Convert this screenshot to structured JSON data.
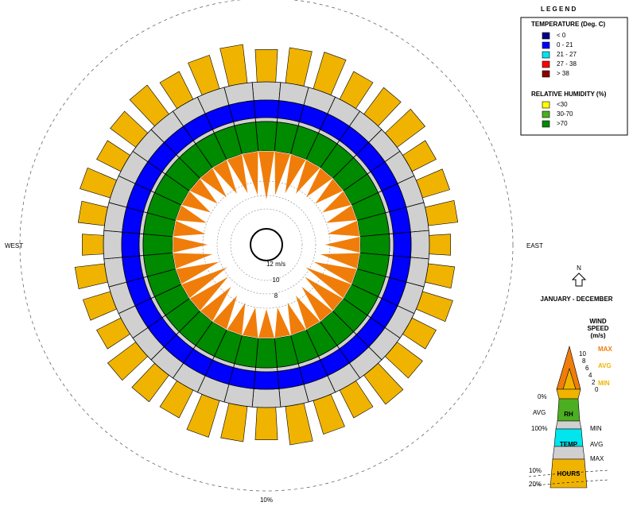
{
  "legend": {
    "title": "L E G E N D",
    "temperature": {
      "title": "TEMPERATURE (Deg. C)",
      "items": [
        {
          "label": "< 0",
          "color": "#00008b"
        },
        {
          "label": "0  -  21",
          "color": "#0000ff"
        },
        {
          "label": "21  -  27",
          "color": "#00e5ee"
        },
        {
          "label": "27  -  38",
          "color": "#ff0000"
        },
        {
          "label": "> 38",
          "color": "#8b0000"
        }
      ]
    },
    "humidity": {
      "title": "RELATIVE HUMIDITY (%)",
      "items": [
        {
          "label": "<30",
          "color": "#ffff00"
        },
        {
          "label": "30-70",
          "color": "#4caf22"
        },
        {
          "label": ">70",
          "color": "#008a00"
        }
      ]
    }
  },
  "compass": {
    "west": "WEST",
    "east": "EAST",
    "north": "N"
  },
  "period": "JANUARY - DECEMBER",
  "center_labels": [
    "12 m/s",
    "10",
    "8"
  ],
  "outer_label": "10%",
  "key": {
    "title": [
      "WIND",
      "SPEED",
      "(m/s)"
    ],
    "speed_ticks": [
      "10",
      "8",
      "6",
      "4",
      "2",
      "0"
    ],
    "max": "MAX",
    "avg": "AVG",
    "min": "MIN",
    "zero_pct": "0%",
    "rh": "RH",
    "rh_avg": "AVG",
    "rh_min": "MIN",
    "hundred_pct": "100%",
    "temp": "TEMP",
    "temp_avg": "AVG",
    "temp_max": "MAX",
    "hours": "HOURS",
    "ten_pct": "10%",
    "twenty_pct": "20%"
  }
}
